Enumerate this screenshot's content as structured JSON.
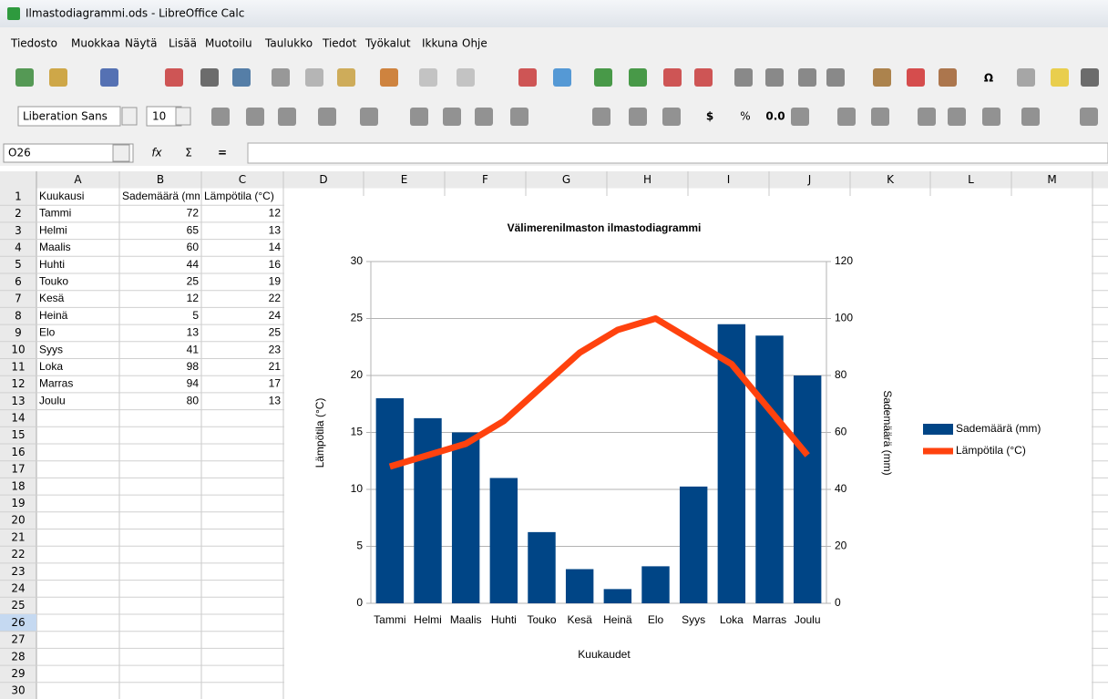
{
  "window": {
    "title": "Ilmastodiagrammi.ods - LibreOffice Calc"
  },
  "menu": [
    "Tiedosto",
    "Muokkaa",
    "Näytä",
    "Lisää",
    "Muotoilu",
    "Taulukko",
    "Tiedot",
    "Työkalut",
    "Ikkuna",
    "Ohje"
  ],
  "toolbar": {
    "font_name": "Liberation Sans",
    "font_size": "10",
    "currency": "$",
    "percent": "%",
    "decimal": "0.0",
    "special_char": "Ω"
  },
  "formula_bar": {
    "cell_ref": "O26"
  },
  "sheet": {
    "columns": [
      "A",
      "B",
      "C",
      "D",
      "E",
      "F",
      "G",
      "H",
      "I",
      "J",
      "K",
      "L",
      "M"
    ],
    "row_numbers": [
      1,
      2,
      3,
      4,
      5,
      6,
      7,
      8,
      9,
      10,
      11,
      12,
      13,
      14,
      15,
      16,
      17,
      18,
      19,
      20,
      21,
      22,
      23,
      24,
      25,
      26,
      27,
      28,
      29,
      30
    ],
    "rows": [
      [
        "Kuukausi",
        "Sademäärä (mm)",
        "Lämpötila (°C)"
      ],
      [
        "Tammi",
        72,
        12
      ],
      [
        "Helmi",
        65,
        13
      ],
      [
        "Maalis",
        60,
        14
      ],
      [
        "Huhti",
        44,
        16
      ],
      [
        "Touko",
        25,
        19
      ],
      [
        "Kesä",
        12,
        22
      ],
      [
        "Heinä",
        5,
        24
      ],
      [
        "Elo",
        13,
        25
      ],
      [
        "Syys",
        41,
        23
      ],
      [
        "Loka",
        98,
        21
      ],
      [
        "Marras",
        94,
        17
      ],
      [
        "Joulu",
        80,
        13
      ]
    ]
  },
  "chart_data": {
    "type": "bar",
    "title": "Välimerenilmaston ilmastodiagrammi",
    "xlabel": "Kuukaudet",
    "ylabel": "Lämpötila (°C)",
    "y2label": "Sademäärä (mm)",
    "categories": [
      "Tammi",
      "Helmi",
      "Maalis",
      "Huhti",
      "Touko",
      "Kesä",
      "Heinä",
      "Elo",
      "Syys",
      "Loka",
      "Marras",
      "Joulu"
    ],
    "series": [
      {
        "name": "Sademäärä (mm)",
        "type": "bar",
        "axis": "y2",
        "color": "#004586",
        "values": [
          72,
          65,
          60,
          44,
          25,
          12,
          5,
          13,
          41,
          98,
          94,
          80
        ]
      },
      {
        "name": "Lämpötila (°C)",
        "type": "line",
        "color": "#ff420e",
        "values": [
          12,
          13,
          14,
          16,
          19,
          22,
          24,
          25,
          23,
          21,
          17,
          13
        ]
      }
    ],
    "ylim": [
      0,
      30
    ],
    "yticks": [
      0,
      5,
      10,
      15,
      20,
      25,
      30
    ],
    "y2lim": [
      0,
      120
    ],
    "y2ticks": [
      0,
      20,
      40,
      60,
      80,
      100,
      120
    ],
    "grid": true,
    "legend": "right"
  }
}
